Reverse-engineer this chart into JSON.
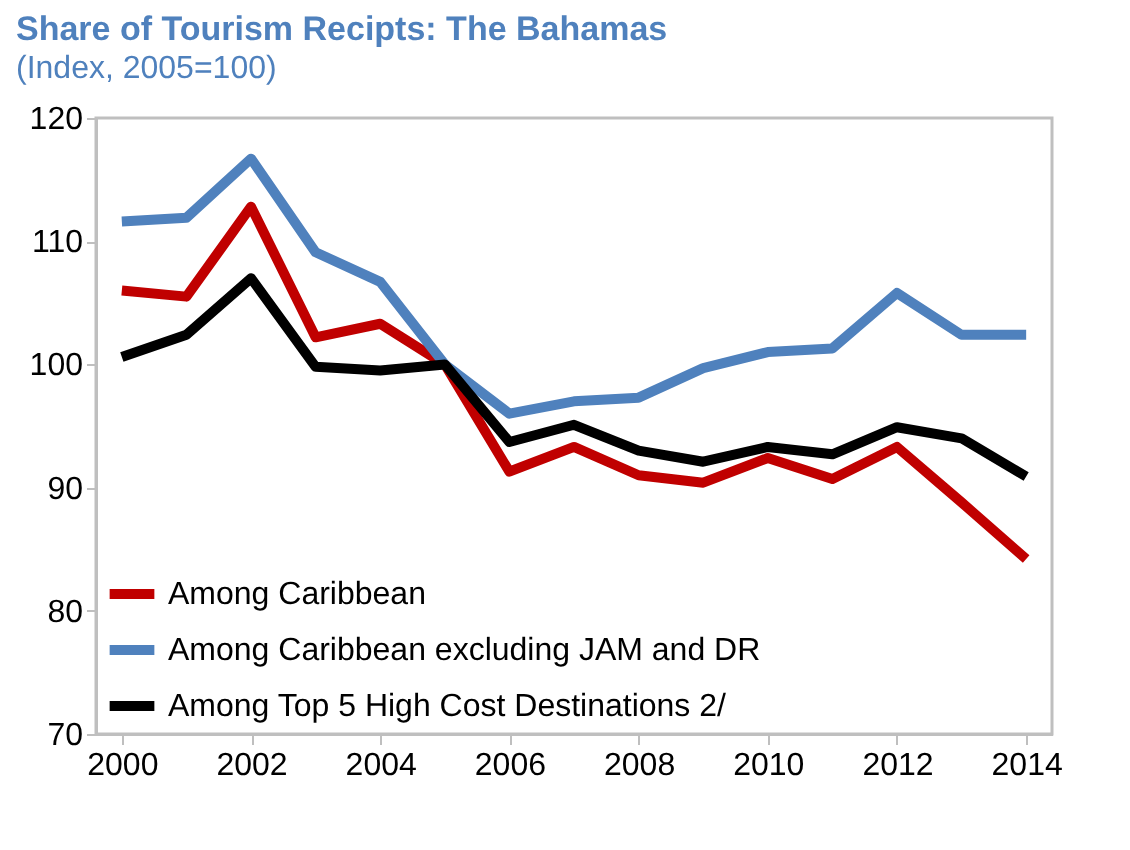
{
  "chart_data": {
    "type": "line",
    "title": "Share of Tourism Recipts: The Bahamas",
    "subtitle": "(Index, 2005=100)",
    "x": [
      2000,
      2001,
      2002,
      2003,
      2004,
      2005,
      2006,
      2007,
      2008,
      2009,
      2010,
      2011,
      2012,
      2013,
      2014
    ],
    "series": [
      {
        "name": "Among Caribbean",
        "color": "#c00000",
        "values": [
          106,
          105.5,
          112.8,
          102.2,
          103.3,
          100,
          91.3,
          93.3,
          91,
          90.4,
          92.4,
          90.7,
          93.3,
          88.8,
          84.2
        ]
      },
      {
        "name": "Among Caribbean excluding JAM and DR",
        "color": "#4f81bd",
        "values": [
          111.6,
          111.9,
          116.7,
          109.1,
          106.7,
          100,
          96,
          97,
          97.3,
          99.7,
          101,
          101.3,
          105.8,
          102.4,
          102.4
        ]
      },
      {
        "name": "Among Top 5 High Cost Destinations 2/",
        "color": "#000000",
        "values": [
          100.6,
          102.4,
          107,
          99.8,
          99.5,
          100,
          93.7,
          95.1,
          93,
          92.1,
          93.3,
          92.7,
          94.9,
          94,
          90.9
        ]
      }
    ],
    "xlim": [
      1999.6,
      2014.4
    ],
    "xticks": [
      2000,
      2002,
      2004,
      2006,
      2008,
      2010,
      2012,
      2014
    ],
    "ylim": [
      70,
      120
    ],
    "yticks": [
      70,
      80,
      90,
      100,
      110,
      120
    ],
    "legend": "bottom left",
    "marker": "none",
    "line_style": "solid"
  }
}
